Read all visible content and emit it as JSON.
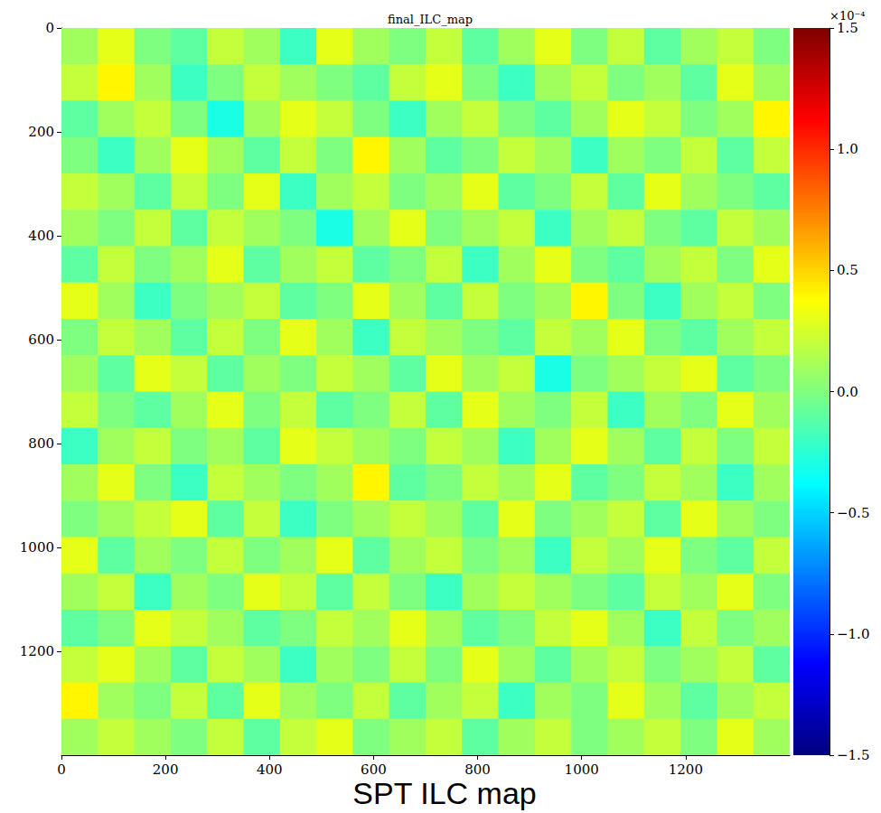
{
  "chart_data": {
    "type": "heatmap",
    "title": "final_ILC_map",
    "caption": "SPT ILC map",
    "grid": false,
    "xlim": [
      0,
      1400
    ],
    "ylim": [
      1400,
      0
    ],
    "xticks": [
      0,
      200,
      400,
      600,
      800,
      1000,
      1200
    ],
    "yticks": [
      0,
      200,
      400,
      600,
      800,
      1000,
      1200
    ],
    "x_bins": [
      0,
      70,
      140,
      210,
      280,
      350,
      420,
      490,
      560,
      630,
      700,
      770,
      840,
      910,
      980,
      1050,
      1120,
      1190,
      1260,
      1330,
      1400
    ],
    "y_bins": [
      0,
      70,
      140,
      210,
      280,
      350,
      420,
      490,
      560,
      630,
      700,
      770,
      840,
      910,
      980,
      1050,
      1120,
      1190,
      1260,
      1330,
      1400
    ],
    "values": [
      [
        0.1,
        0.3,
        0.0,
        -0.1,
        0.2,
        0.1,
        -0.2,
        0.3,
        0.1,
        0.0,
        0.2,
        -0.1,
        0.1,
        0.3,
        0.0,
        0.2,
        -0.1,
        0.1,
        0.2,
        0.0
      ],
      [
        0.2,
        0.4,
        0.1,
        -0.2,
        0.0,
        0.2,
        0.1,
        0.0,
        -0.1,
        0.2,
        0.3,
        0.0,
        -0.2,
        0.1,
        0.2,
        0.0,
        0.1,
        -0.1,
        0.3,
        0.1
      ],
      [
        -0.1,
        0.1,
        0.2,
        0.0,
        -0.3,
        0.1,
        0.3,
        0.2,
        0.0,
        -0.2,
        0.1,
        0.2,
        0.0,
        -0.1,
        0.1,
        0.3,
        0.2,
        0.0,
        0.1,
        0.4
      ],
      [
        0.0,
        -0.2,
        0.1,
        0.3,
        0.1,
        -0.1,
        0.2,
        0.0,
        0.4,
        0.1,
        -0.1,
        0.0,
        0.2,
        0.1,
        -0.2,
        0.1,
        0.0,
        0.2,
        -0.1,
        0.2
      ],
      [
        0.2,
        0.1,
        -0.1,
        0.2,
        0.0,
        0.3,
        -0.2,
        0.1,
        0.2,
        0.0,
        0.1,
        0.3,
        -0.1,
        0.0,
        0.2,
        -0.1,
        0.3,
        0.1,
        0.0,
        -0.1
      ],
      [
        0.1,
        0.0,
        0.2,
        -0.1,
        0.2,
        0.1,
        0.0,
        -0.3,
        0.1,
        0.3,
        0.0,
        0.1,
        0.2,
        -0.2,
        0.1,
        0.2,
        0.0,
        -0.1,
        0.2,
        0.1
      ],
      [
        -0.1,
        0.2,
        0.0,
        0.1,
        0.3,
        -0.1,
        0.1,
        0.2,
        -0.1,
        0.0,
        0.2,
        -0.2,
        0.1,
        0.3,
        0.0,
        -0.1,
        0.1,
        0.2,
        0.0,
        0.3
      ],
      [
        0.3,
        0.1,
        -0.2,
        0.0,
        0.1,
        0.2,
        -0.1,
        0.0,
        0.3,
        0.1,
        -0.1,
        0.2,
        0.0,
        0.1,
        0.4,
        0.0,
        -0.2,
        0.1,
        0.2,
        0.0
      ],
      [
        0.0,
        0.2,
        0.1,
        -0.1,
        0.2,
        0.0,
        0.3,
        0.1,
        -0.2,
        0.2,
        0.1,
        0.0,
        -0.1,
        0.2,
        0.1,
        0.3,
        0.0,
        -0.1,
        0.1,
        0.2
      ],
      [
        0.1,
        -0.1,
        0.3,
        0.2,
        -0.1,
        0.1,
        0.0,
        0.2,
        0.1,
        -0.1,
        0.3,
        0.1,
        0.2,
        -0.3,
        0.0,
        0.1,
        0.2,
        0.3,
        -0.1,
        0.0
      ],
      [
        0.2,
        0.0,
        -0.1,
        0.1,
        0.3,
        0.0,
        0.2,
        -0.1,
        0.0,
        0.2,
        -0.1,
        0.3,
        0.1,
        0.0,
        0.2,
        -0.2,
        0.1,
        0.0,
        0.3,
        0.1
      ],
      [
        -0.2,
        0.1,
        0.2,
        0.0,
        0.1,
        -0.1,
        0.3,
        0.2,
        0.1,
        0.0,
        0.2,
        0.1,
        -0.2,
        0.1,
        0.3,
        0.1,
        -0.1,
        0.2,
        0.0,
        0.2
      ],
      [
        0.1,
        0.3,
        0.0,
        -0.2,
        0.2,
        0.1,
        0.0,
        0.1,
        0.4,
        -0.1,
        0.0,
        0.2,
        0.1,
        0.3,
        -0.1,
        0.0,
        0.2,
        0.1,
        -0.2,
        0.1
      ],
      [
        0.0,
        0.1,
        0.2,
        0.3,
        -0.1,
        0.2,
        -0.2,
        0.0,
        0.1,
        0.2,
        0.1,
        -0.1,
        0.3,
        0.0,
        0.1,
        0.2,
        -0.1,
        0.3,
        0.1,
        0.0
      ],
      [
        0.3,
        -0.1,
        0.1,
        0.0,
        0.2,
        0.0,
        0.1,
        0.3,
        -0.1,
        0.1,
        0.2,
        0.0,
        0.1,
        -0.2,
        0.2,
        0.1,
        0.3,
        0.0,
        -0.1,
        0.2
      ],
      [
        0.1,
        0.2,
        -0.2,
        0.1,
        0.0,
        0.3,
        0.2,
        -0.1,
        0.2,
        0.0,
        -0.2,
        0.1,
        0.2,
        0.1,
        0.0,
        -0.1,
        0.2,
        0.1,
        0.3,
        0.0
      ],
      [
        -0.1,
        0.0,
        0.3,
        0.2,
        0.1,
        -0.1,
        0.0,
        0.2,
        0.1,
        0.3,
        0.1,
        -0.1,
        0.0,
        0.2,
        0.3,
        0.1,
        -0.2,
        0.2,
        0.0,
        0.1
      ],
      [
        0.2,
        0.3,
        0.1,
        -0.1,
        0.2,
        0.1,
        -0.2,
        0.1,
        0.0,
        0.2,
        0.0,
        0.3,
        0.1,
        -0.1,
        0.1,
        0.2,
        0.0,
        0.1,
        0.2,
        -0.1
      ],
      [
        0.4,
        0.1,
        0.0,
        0.2,
        -0.1,
        0.3,
        0.1,
        0.0,
        0.2,
        -0.1,
        0.1,
        0.2,
        -0.2,
        0.1,
        0.0,
        0.3,
        0.1,
        -0.1,
        0.1,
        0.2
      ],
      [
        0.1,
        0.2,
        0.1,
        0.0,
        0.2,
        -0.1,
        0.2,
        0.3,
        0.0,
        0.1,
        0.2,
        -0.1,
        0.1,
        0.2,
        0.0,
        0.1,
        0.2,
        0.0,
        0.3,
        0.1
      ]
    ],
    "colorbar_range": [
      -1.5,
      1.5
    ],
    "colorbar_ticks": [
      {
        "value": -1.5,
        "label": "−1.5"
      },
      {
        "value": -1.0,
        "label": "−1.0"
      },
      {
        "value": -0.5,
        "label": "−0.5"
      },
      {
        "value": 0,
        "label": "0.0"
      },
      {
        "value": 0.5,
        "label": "0.5"
      },
      {
        "value": 1.0,
        "label": "1.0"
      },
      {
        "value": 1.5,
        "label": "1.5"
      }
    ],
    "colorbar_label": "×10⁻⁴"
  }
}
